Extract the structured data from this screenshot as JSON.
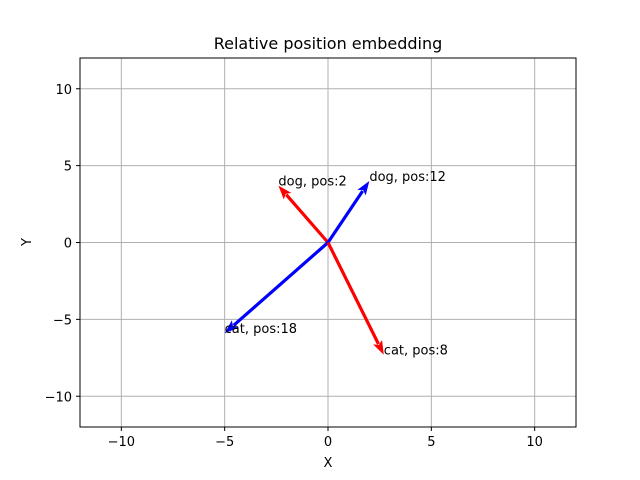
{
  "chart_data": {
    "type": "quiver",
    "title": "Relative position embedding",
    "xlabel": "X",
    "ylabel": "Y",
    "xlim": [
      -12,
      12
    ],
    "ylim": [
      -12,
      12
    ],
    "xticks": [
      -10,
      -5,
      0,
      5,
      10
    ],
    "yticks": [
      -10,
      -5,
      0,
      5,
      10
    ],
    "xtick_labels": [
      "−10",
      "−5",
      "0",
      "5",
      "10"
    ],
    "ytick_labels": [
      "−10",
      "−5",
      "0",
      "5",
      "10"
    ],
    "grid": true,
    "vectors": [
      {
        "label": "dog, pos:2",
        "x0": 0,
        "y0": 0,
        "x": -2.4,
        "y": 3.7,
        "color": "#ff0000"
      },
      {
        "label": "dog, pos:12",
        "x0": 0,
        "y0": 0,
        "x": 2.0,
        "y": 4.0,
        "color": "#0000ff"
      },
      {
        "label": "cat, pos:18",
        "x0": 0,
        "y0": 0,
        "x": -5.0,
        "y": -5.9,
        "color": "#0000ff"
      },
      {
        "label": "cat, pos:8",
        "x0": 0,
        "y0": 0,
        "x": 2.7,
        "y": -7.3,
        "color": "#ff0000"
      }
    ]
  }
}
